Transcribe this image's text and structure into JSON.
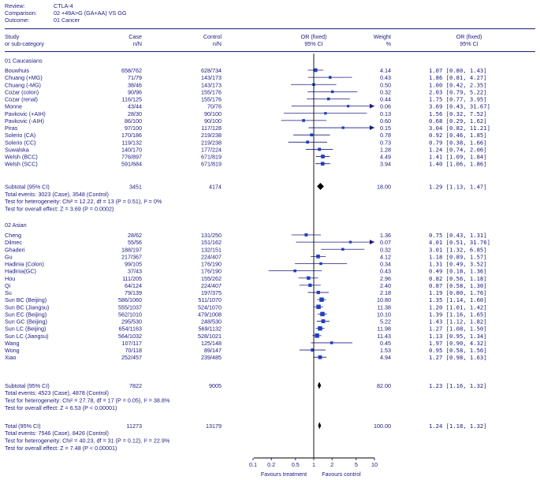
{
  "header": {
    "review_label": "Review:",
    "review": "CTLA-4",
    "comparison_label": "Comparison:",
    "comparison": "02 +49A>G (GA+AA) VS GG",
    "outcome_label": "Outcome:",
    "outcome": "01 Cancer"
  },
  "columns": {
    "study_1": "Study",
    "study_2": "or sub-category",
    "case_1": "Case",
    "case_2": "n/N",
    "control_1": "Control",
    "control_2": "n/N",
    "or_1": "OR (fixed)",
    "or_2": "95% CI",
    "weight_1": "Weight",
    "weight_2": "%",
    "orci_1": "OR (fixed)",
    "orci_2": "95% CI"
  },
  "chart_data": {
    "type": "forest",
    "xscale": "log",
    "xticks": [
      0.1,
      0.2,
      0.5,
      1,
      2,
      5,
      10
    ],
    "xtick_labels": [
      "0.1",
      "0.2",
      "0.5",
      "1",
      "2",
      "5",
      "10"
    ],
    "xlabel_left": "Favours treatment",
    "xlabel_right": "Favours control",
    "groups": [
      {
        "name": "01 Caucasians",
        "studies": [
          {
            "study": "Bouwhuis",
            "case": "658/762",
            "control": "628/734",
            "weight": "4.14",
            "or": 1.07,
            "lo": 0.8,
            "hi": 1.43,
            "ci": "1.07 [0.80, 1.43]"
          },
          {
            "study": "Chuang (+MG)",
            "case": "71/79",
            "control": "143/173",
            "weight": "0.43",
            "or": 1.86,
            "lo": 0.81,
            "hi": 4.27,
            "ci": "1.86 [0.81, 4.27]"
          },
          {
            "study": "Chuang (-MG)",
            "case": "38/46",
            "control": "143/173",
            "weight": "0.50",
            "or": 1.0,
            "lo": 0.42,
            "hi": 2.35,
            "ci": "1.00 [0.42, 2.35]"
          },
          {
            "study": "Cozar (colon)",
            "case": "90/96",
            "control": "155/176",
            "weight": "0.32",
            "or": 2.03,
            "lo": 0.79,
            "hi": 5.22,
            "ci": "2.03 [0.79, 5.22]"
          },
          {
            "study": "Cozar (renal)",
            "case": "116/125",
            "control": "155/176",
            "weight": "0.44",
            "or": 1.75,
            "lo": 0.77,
            "hi": 3.95,
            "ci": "1.75 [0.77, 3.95]"
          },
          {
            "study": "Monne",
            "case": "43/44",
            "control": "70/76",
            "weight": "0.06",
            "or": 3.69,
            "lo": 0.43,
            "hi": 31.67,
            "ci": "3.69 [0.43, 31.67]"
          },
          {
            "study": "Pavkovic (+AIH)",
            "case": "28/30",
            "control": "90/100",
            "weight": "0.13",
            "or": 1.56,
            "lo": 0.32,
            "hi": 7.52,
            "ci": "1.56 [0.32, 7.52]"
          },
          {
            "study": "Pavkovic (-AIH)",
            "case": "86/100",
            "control": "90/100",
            "weight": "0.60",
            "or": 0.68,
            "lo": 0.29,
            "hi": 1.62,
            "ci": "0.68 [0.29, 1.62]"
          },
          {
            "study": "Piras",
            "case": "97/100",
            "control": "117/128",
            "weight": "0.15",
            "or": 3.04,
            "lo": 0.82,
            "hi": 11.21,
            "ci": "3.04 [0.82, 11.21]"
          },
          {
            "study": "Solerio (CA)",
            "case": "170/186",
            "control": "219/238",
            "weight": "0.78",
            "or": 0.92,
            "lo": 0.46,
            "hi": 1.85,
            "ci": "0.92 [0.46, 1.85]"
          },
          {
            "study": "Solerio (CC)",
            "case": "119/132",
            "control": "219/238",
            "weight": "0.73",
            "or": 0.79,
            "lo": 0.38,
            "hi": 1.66,
            "ci": "0.79 [0.38, 1.66]"
          },
          {
            "study": "Suwalska",
            "case": "140/170",
            "control": "177/224",
            "weight": "1.28",
            "or": 1.24,
            "lo": 0.74,
            "hi": 2.06,
            "ci": "1.24 [0.74, 2.06]"
          },
          {
            "study": "Welsh (BCC)",
            "case": "776/897",
            "control": "671/819",
            "weight": "4.49",
            "or": 1.41,
            "lo": 1.09,
            "hi": 1.84,
            "ci": "1.41 [1.09, 1.84]"
          },
          {
            "study": "Welsh (SCC)",
            "case": "591/684",
            "control": "671/819",
            "weight": "3.94",
            "or": 1.4,
            "lo": 1.06,
            "hi": 1.86,
            "ci": "1.40 [1.06, 1.86]"
          }
        ],
        "subtotal": {
          "label": "Subtotal (95% CI)",
          "case": "3451",
          "control": "4174",
          "weight": "18.00",
          "or": 1.29,
          "lo": 1.13,
          "hi": 1.47,
          "ci": "1.29 [1.13, 1.47]"
        },
        "events": "Total events: 3023 (Case), 3548 (Control)",
        "heterogeneity": "Test for heterogeneity: Chi² = 12.22, df = 13 (P = 0.51), I² = 0%",
        "overall": "Test for overall effect: Z = 3.69 (P = 0.0002)"
      },
      {
        "name": "02 Asian",
        "studies": [
          {
            "study": "Cheng",
            "case": "28/62",
            "control": "131/250",
            "weight": "1.36",
            "or": 0.75,
            "lo": 0.43,
            "hi": 1.31,
            "ci": "0.75 [0.43, 1.31]"
          },
          {
            "study": "Dilmec",
            "case": "55/56",
            "control": "151/162",
            "weight": "0.07",
            "or": 4.01,
            "lo": 0.51,
            "hi": 31.76,
            "ci": "4.01 [0.51, 31.76]"
          },
          {
            "study": "Ghaderi",
            "case": "188/197",
            "control": "132/151",
            "weight": "0.32",
            "or": 3.01,
            "lo": 1.32,
            "hi": 6.85,
            "ci": "3.01 [1.32, 6.85]"
          },
          {
            "study": "Gu",
            "case": "217/367",
            "control": "224/407",
            "weight": "4.12",
            "or": 1.18,
            "lo": 0.89,
            "hi": 1.57,
            "ci": "1.18 [0.89, 1.57]"
          },
          {
            "study": "Hadinia (Colon)",
            "case": "99/105",
            "control": "176/190",
            "weight": "0.34",
            "or": 1.31,
            "lo": 0.49,
            "hi": 3.52,
            "ci": "1.31 [0.49, 3.52]"
          },
          {
            "study": "Hadinia(GC)",
            "case": "37/43",
            "control": "176/190",
            "weight": "0.43",
            "or": 0.49,
            "lo": 0.18,
            "hi": 1.36,
            "ci": "0.49 [0.18, 1.36]"
          },
          {
            "study": "Hou",
            "case": "111/205",
            "control": "155/262",
            "weight": "2.96",
            "or": 0.82,
            "lo": 0.56,
            "hi": 1.18,
            "ci": "0.82 [0.56, 1.18]"
          },
          {
            "study": "Qi",
            "case": "64/124",
            "control": "224/407",
            "weight": "2.40",
            "or": 0.87,
            "lo": 0.58,
            "hi": 1.3,
            "ci": "0.87 [0.58, 1.30]"
          },
          {
            "study": "Su",
            "case": "79/139",
            "control": "197/375",
            "weight": "2.18",
            "or": 1.19,
            "lo": 0.8,
            "hi": 1.76,
            "ci": "1.19 [0.80, 1.76]"
          },
          {
            "study": "Sun BC (Beijing)",
            "case": "586/1060",
            "control": "511/1070",
            "weight": "10.80",
            "or": 1.35,
            "lo": 1.14,
            "hi": 1.6,
            "ci": "1.35 [1.14, 1.60]"
          },
          {
            "study": "Sun BC (Jiangsu)",
            "case": "555/1037",
            "control": "524/1070",
            "weight": "11.38",
            "or": 1.2,
            "lo": 1.01,
            "hi": 1.42,
            "ci": "1.20 [1.01, 1.42]"
          },
          {
            "study": "Sun EC (Beijing)",
            "case": "562/1010",
            "control": "479/1008",
            "weight": "10.10",
            "or": 1.39,
            "lo": 1.16,
            "hi": 1.65,
            "ci": "1.39 [1.16, 1.65]"
          },
          {
            "study": "Sun GC (Beijing)",
            "case": "295/530",
            "control": "248/530",
            "weight": "5.22",
            "or": 1.43,
            "lo": 1.12,
            "hi": 1.82,
            "ci": "1.43 [1.12, 1.82]"
          },
          {
            "study": "Sun LC (Beijing)",
            "case": "654/1163",
            "control": "569/1132",
            "weight": "11.98",
            "or": 1.27,
            "lo": 1.08,
            "hi": 1.5,
            "ci": "1.27 [1.08, 1.50]"
          },
          {
            "study": "Sun LC (Jiangsu)",
            "case": "564/1032",
            "control": "528/1021",
            "weight": "11.43",
            "or": 1.13,
            "lo": 0.95,
            "hi": 1.34,
            "ci": "1.13 [0.95, 1.34]"
          },
          {
            "study": "Wang",
            "case": "107/117",
            "control": "125/148",
            "weight": "0.45",
            "or": 1.97,
            "lo": 0.9,
            "hi": 4.32,
            "ci": "1.97 [0.90, 4.32]"
          },
          {
            "study": "Wong",
            "case": "70/118",
            "control": "89/147",
            "weight": "1.53",
            "or": 0.95,
            "lo": 0.58,
            "hi": 1.56,
            "ci": "0.95 [0.58, 1.56]"
          },
          {
            "study": "Xiao",
            "case": "252/457",
            "control": "239/485",
            "weight": "4.94",
            "or": 1.27,
            "lo": 0.98,
            "hi": 1.63,
            "ci": "1.27 [0.98, 1.63]"
          }
        ],
        "subtotal": {
          "label": "Subtotal (95% CI)",
          "case": "7822",
          "control": "9005",
          "weight": "82.00",
          "or": 1.23,
          "lo": 1.16,
          "hi": 1.32,
          "ci": "1.23 [1.16, 1.32]"
        },
        "events": "Total events: 4523 (Case), 4878 (Control)",
        "heterogeneity": "Test for heterogeneity: Chi² = 27.78, df = 17 (P = 0.05), I² = 38.8%",
        "overall": "Test for overall effect: Z = 6.53 (P < 0.00001)"
      }
    ],
    "total": {
      "label": "Total (95% CI)",
      "case": "11273",
      "control": "13179",
      "weight": "100.00",
      "or": 1.24,
      "lo": 1.18,
      "hi": 1.32,
      "ci": "1.24 [1.18, 1.32]"
    },
    "total_events": "Total events: 7546 (Case), 8426 (Control)",
    "total_heterogeneity": "Test for heterogeneity: Chi² = 40.23, df = 31 (P = 0.12), I² = 22.9%",
    "total_overall": "Test for overall effect: Z = 7.48 (P < 0.00001)"
  }
}
